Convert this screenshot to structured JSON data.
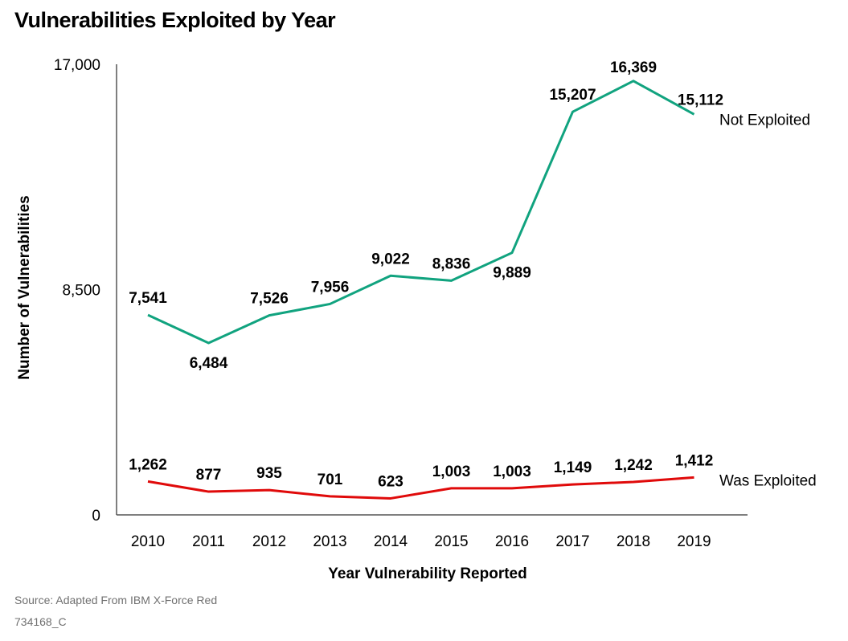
{
  "title": "Vulnerabilities Exploited by Year",
  "source": "Source: Adapted From IBM X-Force Red",
  "doc_id": "734168_C",
  "colors": {
    "not_exploited": "#11a37f",
    "was_exploited": "#e00a0a",
    "axis": "#555555"
  },
  "chart_data": {
    "type": "line",
    "x": [
      "2010",
      "2011",
      "2012",
      "2013",
      "2014",
      "2015",
      "2016",
      "2017",
      "2018",
      "2019"
    ],
    "xlabel": "Year Vulnerability Reported",
    "ylabel": "Number of Vulnerabilities",
    "ylim": [
      0,
      17000
    ],
    "yticks": [
      0,
      8500,
      17000
    ],
    "ytick_labels": [
      "0",
      "8,500",
      "17,000"
    ],
    "grid": false,
    "series": [
      {
        "name": "Not Exploited",
        "values": [
          7541,
          6484,
          7526,
          7956,
          9022,
          8836,
          9889,
          15207,
          16369,
          15112
        ],
        "labels": [
          "7,541",
          "6,484",
          "7,526",
          "7,956",
          "9,022",
          "8,836",
          "9,889",
          "15,207",
          "16,369",
          "15,112"
        ]
      },
      {
        "name": "Was Exploited",
        "values": [
          1262,
          877,
          935,
          701,
          623,
          1003,
          1003,
          1149,
          1242,
          1412
        ],
        "labels": [
          "1,262",
          "877",
          "935",
          "701",
          "623",
          "1,003",
          "1,003",
          "1,149",
          "1,242",
          "1,412"
        ]
      }
    ]
  }
}
